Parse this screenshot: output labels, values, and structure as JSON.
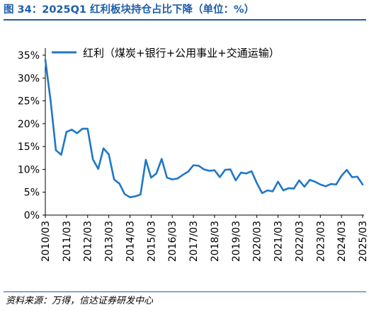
{
  "title": "图 34：2025Q1 红利板块持仓占比下降（单位：%）",
  "source": "资料来源：万得，信达证券研发中心",
  "colors": {
    "accent": "#1f5ea8",
    "line": "#1f77c8"
  },
  "chart_data": {
    "type": "line",
    "title": "图 34：2025Q1 红利板块持仓占比下降（单位：%）",
    "xlabel": "",
    "ylabel": "",
    "ylim": [
      0,
      35
    ],
    "yticks": [
      "0%",
      "5%",
      "10%",
      "15%",
      "20%",
      "25%",
      "30%",
      "35%"
    ],
    "xticks": [
      "2010/03",
      "2011/03",
      "2012/03",
      "2013/03",
      "2014/03",
      "2015/03",
      "2016/03",
      "2017/03",
      "2018/03",
      "2019/03",
      "2020/03",
      "2021/03",
      "2022/03",
      "2023/03",
      "2024/03",
      "2025/03"
    ],
    "legend": "top-left",
    "grid": false,
    "series": [
      {
        "name": "红利（煤炭+银行+公用事业+交通运输）",
        "x": [
          "2010/03",
          "2010/06",
          "2010/09",
          "2010/12",
          "2011/03",
          "2011/06",
          "2011/09",
          "2011/12",
          "2012/03",
          "2012/06",
          "2012/09",
          "2012/12",
          "2013/03",
          "2013/06",
          "2013/09",
          "2013/12",
          "2014/03",
          "2014/06",
          "2014/09",
          "2014/12",
          "2015/03",
          "2015/06",
          "2015/09",
          "2015/12",
          "2016/03",
          "2016/06",
          "2016/09",
          "2016/12",
          "2017/03",
          "2017/06",
          "2017/09",
          "2017/12",
          "2018/03",
          "2018/06",
          "2018/09",
          "2018/12",
          "2019/03",
          "2019/06",
          "2019/09",
          "2019/12",
          "2020/03",
          "2020/06",
          "2020/09",
          "2020/12",
          "2021/03",
          "2021/06",
          "2021/09",
          "2021/12",
          "2022/03",
          "2022/06",
          "2022/09",
          "2022/12",
          "2023/03",
          "2023/06",
          "2023/09",
          "2023/12",
          "2024/03",
          "2024/06",
          "2024/09",
          "2024/12",
          "2025/03"
        ],
        "values": [
          34.0,
          25.0,
          14.2,
          13.2,
          18.2,
          18.7,
          17.9,
          18.9,
          18.9,
          12.2,
          10.1,
          14.6,
          13.3,
          7.8,
          6.9,
          4.6,
          3.9,
          4.1,
          4.5,
          12.1,
          8.2,
          9.1,
          12.3,
          8.2,
          7.8,
          8.0,
          8.8,
          9.5,
          10.9,
          10.8,
          10.0,
          9.7,
          9.8,
          8.3,
          9.9,
          10.0,
          7.6,
          9.3,
          9.1,
          9.6,
          7.0,
          4.8,
          5.4,
          5.2,
          7.3,
          5.4,
          5.9,
          5.8,
          7.6,
          6.2,
          7.7,
          7.3,
          6.7,
          6.3,
          6.8,
          6.7,
          8.6,
          9.9,
          8.3,
          8.4,
          6.7
        ]
      }
    ]
  }
}
